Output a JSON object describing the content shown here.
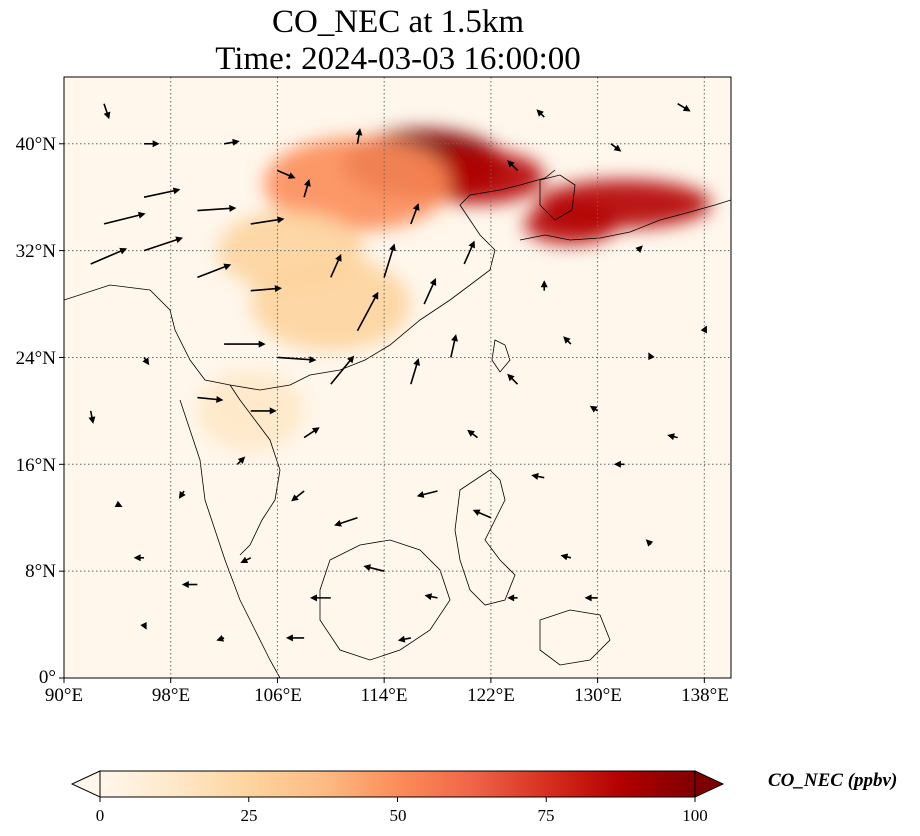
{
  "title": {
    "line1": "CO_NEC at 1.5km",
    "line2": "Time: 2024-03-03 16:00:00"
  },
  "map": {
    "projection": "PlateCarree",
    "lon_range": [
      90,
      140
    ],
    "lat_range": [
      0,
      45
    ],
    "gridlines": "dotted",
    "lat_ticks": [
      {
        "value": 40,
        "label": "40°N"
      },
      {
        "value": 32,
        "label": "32°N"
      },
      {
        "value": 24,
        "label": "24°N"
      },
      {
        "value": 16,
        "label": "16°N"
      },
      {
        "value": 8,
        "label": "8°N"
      },
      {
        "value": 0,
        "label": "0°"
      }
    ],
    "lon_ticks": [
      {
        "value": 90,
        "label": "90°E"
      },
      {
        "value": 98,
        "label": "98°E"
      },
      {
        "value": 106,
        "label": "106°E"
      },
      {
        "value": 114,
        "label": "114°E"
      },
      {
        "value": 122,
        "label": "122°E"
      },
      {
        "value": 130,
        "label": "130°E"
      },
      {
        "value": 138,
        "label": "138°E"
      }
    ]
  },
  "colorbar": {
    "label": "CO_NEC (ppbv)",
    "min": 0,
    "max": 100,
    "extend": "both",
    "colormap": "OrRd",
    "colors": [
      "#fff7ec",
      "#fee8c8",
      "#fdd49e",
      "#fdbb84",
      "#fc8d59",
      "#ef6548",
      "#d7301f",
      "#b30000",
      "#7f0000"
    ],
    "ticks": [
      {
        "value": 0,
        "label": "0"
      },
      {
        "value": 25,
        "label": "25"
      },
      {
        "value": 50,
        "label": "50"
      },
      {
        "value": 75,
        "label": "75"
      },
      {
        "value": 100,
        "label": "100"
      }
    ]
  },
  "plumes": [
    {
      "lon": 117,
      "lat": 38.5,
      "rx": 6,
      "ry": 2.6,
      "level": 0.95
    },
    {
      "lon": 121,
      "lat": 37.5,
      "rx": 5,
      "ry": 2.0,
      "level": 0.9
    },
    {
      "lon": 132,
      "lat": 35.5,
      "rx": 6.5,
      "ry": 1.8,
      "level": 0.9
    },
    {
      "lon": 128,
      "lat": 34.0,
      "rx": 3.5,
      "ry": 1.5,
      "level": 0.85
    },
    {
      "lon": 112,
      "lat": 37.0,
      "rx": 7,
      "ry": 3.5,
      "level": 0.45
    },
    {
      "lon": 107,
      "lat": 32.0,
      "rx": 5.5,
      "ry": 3.0,
      "level": 0.3
    },
    {
      "lon": 110,
      "lat": 28.0,
      "rx": 6,
      "ry": 3.5,
      "level": 0.2
    },
    {
      "lon": 104,
      "lat": 20.0,
      "rx": 4,
      "ry": 3,
      "level": 0.12
    }
  ],
  "wind_vectors": [
    {
      "lon": 93,
      "lat": 34,
      "u": 3.2,
      "v": 0.8
    },
    {
      "lon": 96,
      "lat": 36,
      "u": 2.8,
      "v": 0.6
    },
    {
      "lon": 100,
      "lat": 35,
      "u": 3.0,
      "v": 0.2
    },
    {
      "lon": 104,
      "lat": 34,
      "u": 2.6,
      "v": 0.4
    },
    {
      "lon": 92,
      "lat": 31,
      "u": 2.8,
      "v": 1.2
    },
    {
      "lon": 96,
      "lat": 32,
      "u": 3.0,
      "v": 1.0
    },
    {
      "lon": 100,
      "lat": 30,
      "u": 2.6,
      "v": 1.0
    },
    {
      "lon": 104,
      "lat": 29,
      "u": 2.4,
      "v": 0.2
    },
    {
      "lon": 102,
      "lat": 25,
      "u": 3.2,
      "v": 0.0
    },
    {
      "lon": 106,
      "lat": 24,
      "u": 3.0,
      "v": -0.2
    },
    {
      "lon": 100,
      "lat": 21,
      "u": 2.0,
      "v": -0.2
    },
    {
      "lon": 104,
      "lat": 20,
      "u": 2.0,
      "v": 0.0
    },
    {
      "lon": 110,
      "lat": 22,
      "u": 1.8,
      "v": 2.2
    },
    {
      "lon": 112,
      "lat": 26,
      "u": 1.6,
      "v": 3.0
    },
    {
      "lon": 114,
      "lat": 30,
      "u": 0.8,
      "v": 2.6
    },
    {
      "lon": 117,
      "lat": 28,
      "u": 0.9,
      "v": 2.0
    },
    {
      "lon": 110,
      "lat": 30,
      "u": 0.8,
      "v": 1.8
    },
    {
      "lon": 119,
      "lat": 24,
      "u": 0.4,
      "v": 1.8
    },
    {
      "lon": 116,
      "lat": 22,
      "u": 0.6,
      "v": 2.0
    },
    {
      "lon": 108,
      "lat": 36,
      "u": 0.4,
      "v": 1.4
    },
    {
      "lon": 112,
      "lat": 40,
      "u": 0.2,
      "v": 1.2
    },
    {
      "lon": 116,
      "lat": 34,
      "u": 0.6,
      "v": 1.6
    },
    {
      "lon": 120,
      "lat": 31,
      "u": 0.8,
      "v": 1.8
    },
    {
      "lon": 124,
      "lat": 38,
      "u": -0.8,
      "v": 0.8
    },
    {
      "lon": 126,
      "lat": 42,
      "u": -0.6,
      "v": 0.6
    },
    {
      "lon": 131,
      "lat": 40,
      "u": 0.8,
      "v": -0.6
    },
    {
      "lon": 136,
      "lat": 43,
      "u": 1.0,
      "v": -0.6
    },
    {
      "lon": 133,
      "lat": 32,
      "u": 0.4,
      "v": 0.4
    },
    {
      "lon": 126,
      "lat": 29,
      "u": 0.0,
      "v": 0.8
    },
    {
      "lon": 128,
      "lat": 25,
      "u": -0.6,
      "v": 0.6
    },
    {
      "lon": 124,
      "lat": 22,
      "u": -0.8,
      "v": 0.8
    },
    {
      "lon": 130,
      "lat": 20,
      "u": -0.6,
      "v": 0.4
    },
    {
      "lon": 121,
      "lat": 18,
      "u": -0.8,
      "v": 0.6
    },
    {
      "lon": 118,
      "lat": 14,
      "u": -1.6,
      "v": -0.4
    },
    {
      "lon": 122,
      "lat": 12,
      "u": -1.4,
      "v": 0.6
    },
    {
      "lon": 126,
      "lat": 15,
      "u": -1.0,
      "v": 0.2
    },
    {
      "lon": 132,
      "lat": 16,
      "u": -0.8,
      "v": 0.0
    },
    {
      "lon": 136,
      "lat": 18,
      "u": -0.8,
      "v": 0.2
    },
    {
      "lon": 112,
      "lat": 12,
      "u": -1.8,
      "v": -0.6
    },
    {
      "lon": 108,
      "lat": 14,
      "u": -1.0,
      "v": -0.8
    },
    {
      "lon": 114,
      "lat": 8,
      "u": -1.6,
      "v": 0.4
    },
    {
      "lon": 110,
      "lat": 6,
      "u": -1.6,
      "v": 0.0
    },
    {
      "lon": 104,
      "lat": 9,
      "u": -0.8,
      "v": -0.4
    },
    {
      "lon": 100,
      "lat": 7,
      "u": -1.2,
      "v": 0.0
    },
    {
      "lon": 96,
      "lat": 9,
      "u": -0.8,
      "v": 0.0
    },
    {
      "lon": 94,
      "lat": 13,
      "u": 0.4,
      "v": -0.2
    },
    {
      "lon": 99,
      "lat": 14,
      "u": -0.4,
      "v": -0.6
    },
    {
      "lon": 103,
      "lat": 16,
      "u": 0.6,
      "v": 0.6
    },
    {
      "lon": 92,
      "lat": 20,
      "u": 0.2,
      "v": -1.0
    },
    {
      "lon": 96,
      "lat": 24,
      "u": 0.4,
      "v": -0.6
    },
    {
      "lon": 108,
      "lat": 18,
      "u": 1.2,
      "v": 0.8
    },
    {
      "lon": 118,
      "lat": 6,
      "u": -1.0,
      "v": 0.2
    },
    {
      "lon": 124,
      "lat": 6,
      "u": -0.8,
      "v": 0.0
    },
    {
      "lon": 130,
      "lat": 6,
      "u": -1.0,
      "v": 0.0
    },
    {
      "lon": 134,
      "lat": 10,
      "u": -0.4,
      "v": 0.4
    },
    {
      "lon": 128,
      "lat": 9,
      "u": -0.8,
      "v": 0.2
    },
    {
      "lon": 108,
      "lat": 3,
      "u": -1.4,
      "v": 0.0
    },
    {
      "lon": 116,
      "lat": 3,
      "u": -1.0,
      "v": -0.2
    },
    {
      "lon": 102,
      "lat": 3,
      "u": -0.6,
      "v": -0.2
    },
    {
      "lon": 96,
      "lat": 4,
      "u": 0.2,
      "v": -0.4
    },
    {
      "lon": 138,
      "lat": 26,
      "u": 0.2,
      "v": 0.4
    },
    {
      "lon": 134,
      "lat": 24,
      "u": -0.2,
      "v": 0.4
    },
    {
      "lon": 102,
      "lat": 40,
      "u": 1.2,
      "v": 0.2
    },
    {
      "lon": 106,
      "lat": 38,
      "u": 1.4,
      "v": -0.6
    },
    {
      "lon": 96,
      "lat": 40,
      "u": 1.2,
      "v": 0.0
    },
    {
      "lon": 93,
      "lat": 43,
      "u": 0.4,
      "v": -1.2
    }
  ]
}
